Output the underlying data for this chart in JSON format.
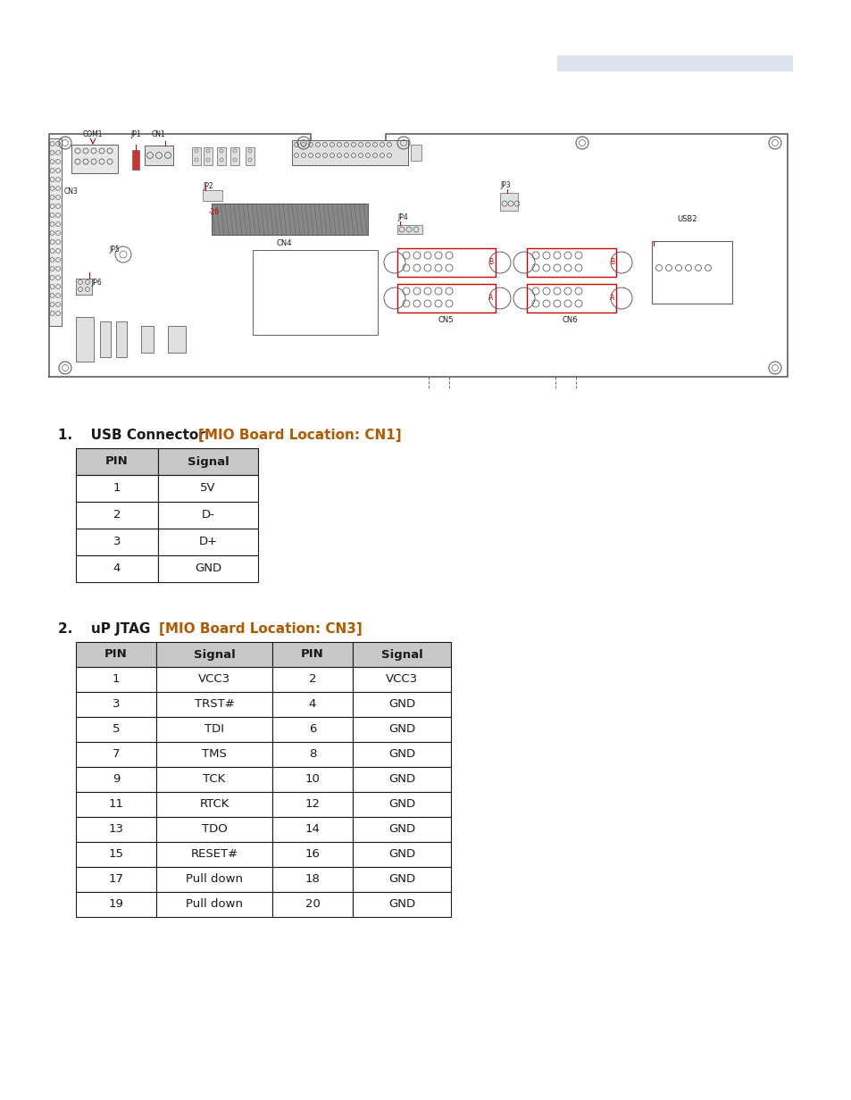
{
  "page_bar_color": "#dce3ed",
  "section1_title_black": "USB Connector ",
  "section1_title_orange": "[MIO Board Location: CN1]",
  "section1_table_headers": [
    "PIN",
    "Signal"
  ],
  "section1_table_data": [
    [
      "1",
      "5V"
    ],
    [
      "2",
      "D-"
    ],
    [
      "3",
      "D+"
    ],
    [
      "4",
      "GND"
    ]
  ],
  "section2_title_black": "uP JTAG ",
  "section2_title_orange": "[MIO Board Location: CN3]",
  "section2_table_headers": [
    "PIN",
    "Signal",
    "PIN",
    "Signal"
  ],
  "section2_table_data": [
    [
      "1",
      "VCC3",
      "2",
      "VCC3"
    ],
    [
      "3",
      "TRST#",
      "4",
      "GND"
    ],
    [
      "5",
      "TDI",
      "6",
      "GND"
    ],
    [
      "7",
      "TMS",
      "8",
      "GND"
    ],
    [
      "9",
      "TCK",
      "10",
      "GND"
    ],
    [
      "11",
      "RTCK",
      "12",
      "GND"
    ],
    [
      "13",
      "TDO",
      "14",
      "GND"
    ],
    [
      "15",
      "RESET#",
      "16",
      "GND"
    ],
    [
      "17",
      "Pull down",
      "18",
      "GND"
    ],
    [
      "19",
      "Pull down",
      "20",
      "GND"
    ]
  ],
  "orange_color": "#b35a00",
  "black_color": "#1a1a1a",
  "header_bg": "#c8c8c8",
  "table_border": "#1a1a1a",
  "body_bg": "#ffffff",
  "font_size_section": 11.0,
  "font_size_table": 9.5,
  "board_line_color": "#606060",
  "board_red_color": "#cc0000",
  "board_fill": "#f0f0f0"
}
